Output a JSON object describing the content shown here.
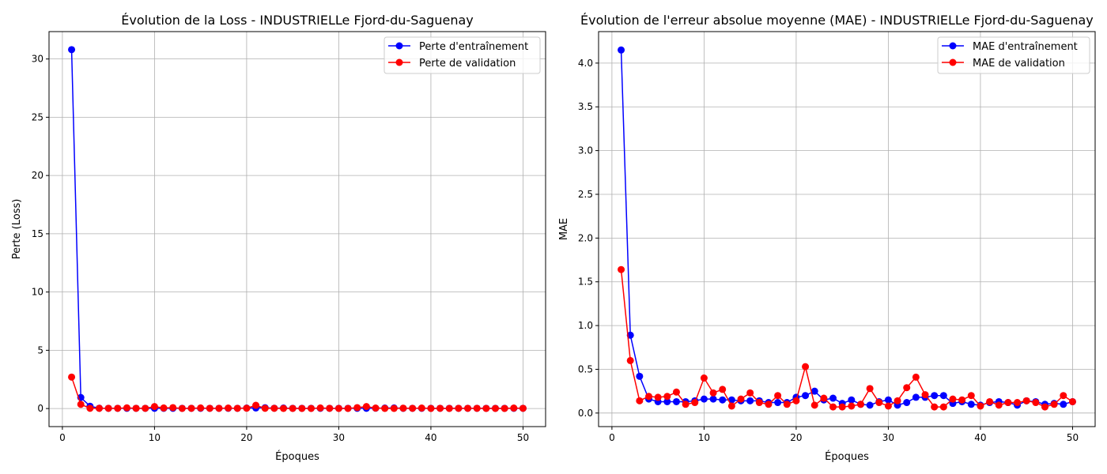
{
  "chart_data": [
    {
      "type": "line",
      "title": "Évolution de la Loss - INDUSTRIELLe Fjord-du-Saguenay",
      "xlabel": "Époques",
      "ylabel": "Perte (Loss)",
      "xlim": [
        -1.45,
        52.45
      ],
      "ylim": [
        -1.55,
        32.35
      ],
      "xticks": [
        0,
        10,
        20,
        30,
        40,
        50
      ],
      "yticks": [
        0,
        5,
        10,
        15,
        20,
        25,
        30
      ],
      "grid": true,
      "legend_position": "upper right",
      "x": [
        1,
        2,
        3,
        4,
        5,
        6,
        7,
        8,
        9,
        10,
        11,
        12,
        13,
        14,
        15,
        16,
        17,
        18,
        19,
        20,
        21,
        22,
        23,
        24,
        25,
        26,
        27,
        28,
        29,
        30,
        31,
        32,
        33,
        34,
        35,
        36,
        37,
        38,
        39,
        40,
        41,
        42,
        43,
        44,
        45,
        46,
        47,
        48,
        49,
        50
      ],
      "series": [
        {
          "name": "Perte d'entraînement",
          "color": "#0000ff",
          "values": [
            30.8,
            0.95,
            0.2,
            0.03,
            0.02,
            0.02,
            0.02,
            0.02,
            0.02,
            0.02,
            0.02,
            0.02,
            0.02,
            0.02,
            0.02,
            0.02,
            0.02,
            0.02,
            0.02,
            0.04,
            0.05,
            0.07,
            0.03,
            0.04,
            0.02,
            0.02,
            0.02,
            0.02,
            0.02,
            0.02,
            0.02,
            0.02,
            0.02,
            0.03,
            0.04,
            0.05,
            0.02,
            0.02,
            0.02,
            0.02,
            0.02,
            0.02,
            0.02,
            0.02,
            0.02,
            0.02,
            0.02,
            0.02,
            0.02,
            0.02
          ]
        },
        {
          "name": "Perte de validation",
          "color": "#ff0000",
          "values": [
            2.7,
            0.36,
            0.02,
            0.02,
            0.02,
            0.02,
            0.06,
            0.02,
            0.02,
            0.17,
            0.05,
            0.08,
            0.01,
            0.02,
            0.05,
            0.02,
            0.02,
            0.04,
            0.02,
            0.03,
            0.28,
            0.02,
            0.02,
            0.01,
            0.01,
            0.01,
            0.01,
            0.05,
            0.02,
            0.01,
            0.01,
            0.08,
            0.17,
            0.04,
            0.01,
            0.01,
            0.03,
            0.02,
            0.04,
            0.01,
            0.02,
            0.01,
            0.02,
            0.02,
            0.02,
            0.01,
            0.01,
            0.01,
            0.04,
            0.02
          ]
        }
      ]
    },
    {
      "type": "line",
      "title": "Évolution de l'erreur absolue moyenne (MAE) - INDUSTRIELLe Fjord-du-Saguenay",
      "xlabel": "Époques",
      "ylabel": "MAE",
      "xlim": [
        -1.45,
        52.45
      ],
      "ylim": [
        -0.155,
        4.36
      ],
      "xticks": [
        0,
        10,
        20,
        30,
        40,
        50
      ],
      "yticks": [
        "0.0",
        "0.5",
        "1.0",
        "1.5",
        "2.0",
        "2.5",
        "3.0",
        "3.5",
        "4.0"
      ],
      "grid": true,
      "legend_position": "upper right",
      "x": [
        1,
        2,
        3,
        4,
        5,
        6,
        7,
        8,
        9,
        10,
        11,
        12,
        13,
        14,
        15,
        16,
        17,
        18,
        19,
        20,
        21,
        22,
        23,
        24,
        25,
        26,
        27,
        28,
        29,
        30,
        31,
        32,
        33,
        34,
        35,
        36,
        37,
        38,
        39,
        40,
        41,
        42,
        43,
        44,
        45,
        46,
        47,
        48,
        49,
        50
      ],
      "series": [
        {
          "name": "MAE d'entraînement",
          "color": "#0000ff",
          "values": [
            4.15,
            0.89,
            0.42,
            0.16,
            0.13,
            0.13,
            0.13,
            0.13,
            0.14,
            0.16,
            0.16,
            0.15,
            0.15,
            0.14,
            0.14,
            0.14,
            0.12,
            0.12,
            0.12,
            0.18,
            0.2,
            0.25,
            0.15,
            0.17,
            0.11,
            0.15,
            0.1,
            0.09,
            0.13,
            0.15,
            0.09,
            0.12,
            0.18,
            0.18,
            0.2,
            0.2,
            0.11,
            0.13,
            0.1,
            0.09,
            0.12,
            0.13,
            0.12,
            0.09,
            0.14,
            0.13,
            0.1,
            0.11,
            0.1,
            0.13
          ]
        },
        {
          "name": "MAE de validation",
          "color": "#ff0000",
          "values": [
            1.64,
            0.6,
            0.14,
            0.19,
            0.18,
            0.19,
            0.24,
            0.1,
            0.12,
            0.4,
            0.23,
            0.27,
            0.08,
            0.16,
            0.23,
            0.12,
            0.1,
            0.2,
            0.1,
            0.14,
            0.53,
            0.09,
            0.17,
            0.07,
            0.07,
            0.08,
            0.1,
            0.28,
            0.12,
            0.08,
            0.14,
            0.29,
            0.41,
            0.21,
            0.07,
            0.07,
            0.16,
            0.15,
            0.2,
            0.08,
            0.13,
            0.09,
            0.12,
            0.12,
            0.14,
            0.12,
            0.07,
            0.1,
            0.2,
            0.13
          ]
        }
      ]
    }
  ]
}
